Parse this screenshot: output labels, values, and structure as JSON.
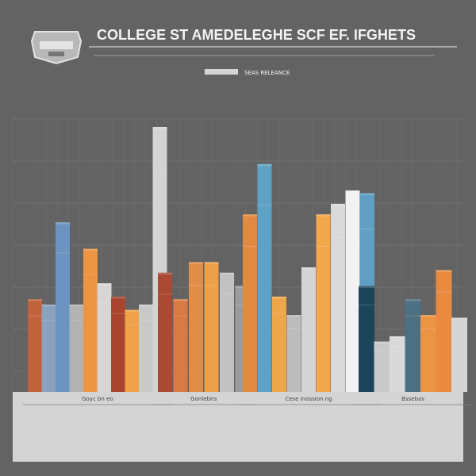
{
  "header": {
    "title": "COLLEGE ST AMEDELEGHE SCF EF. IFGHETS",
    "subtitle": "SEAS RELEANCE"
  },
  "colors": {
    "background": "#636363",
    "footer": "#d4d4d4",
    "logo": "#b9b9b9"
  },
  "chart_data": {
    "type": "bar",
    "ylim": [
      0,
      100
    ],
    "grid": true,
    "legend": "none",
    "groups": [
      {
        "label": "Goyc bn eo",
        "bars": [
          {
            "value": 35,
            "color": "#c0623b"
          },
          {
            "value": 33,
            "color": "#8aa2bd"
          },
          {
            "value": 64,
            "color": "#6d93c0"
          },
          {
            "value": 33,
            "color": "#b2b2b2"
          },
          {
            "value": 54,
            "color": "#eb9444"
          },
          {
            "value": 41,
            "color": "#d6d6d6"
          },
          {
            "value": 36,
            "color": "#a9452f"
          },
          {
            "value": 31,
            "color": "#eda248"
          },
          {
            "value": 33,
            "color": "#c9c9c9"
          },
          {
            "value": 100,
            "color": "#d4d4d4"
          }
        ]
      },
      {
        "label": "Gonlebirs",
        "bars": [
          {
            "value": 45,
            "color": "#aa4a32"
          },
          {
            "value": 35,
            "color": "#d87a41"
          },
          {
            "value": 49,
            "color": "#e28d47"
          },
          {
            "value": 49,
            "color": "#eda04a"
          },
          {
            "value": 45,
            "color": "#c2c2c2"
          },
          {
            "value": 40,
            "color": "#9c9c9c"
          }
        ]
      },
      {
        "label": "Cese lnossion ng",
        "bars": [
          {
            "value": 67,
            "color": "#e28a42"
          },
          {
            "value": 86,
            "color": "#5ea2c5"
          },
          {
            "value": 36,
            "color": "#eda64a"
          },
          {
            "value": 29,
            "color": "#bcbcbc"
          },
          {
            "value": 47,
            "color": "#d4d4d4"
          },
          {
            "value": 67,
            "color": "#f1a74b"
          },
          {
            "value": 71,
            "color": "#dadada"
          },
          {
            "value": 76,
            "color": "#f2f2f2"
          },
          {
            "value": 75,
            "color": "#5f9fc4"
          }
        ]
      },
      {
        "label": "Bssebas",
        "bars": [
          {
            "value": 40,
            "color": "#1c445a"
          },
          {
            "value": 19,
            "color": "#c9c9c9"
          },
          {
            "value": 21,
            "color": "#d9d9d9"
          },
          {
            "value": 35,
            "color": "#4d6f82"
          },
          {
            "value": 29,
            "color": "#eb9444"
          },
          {
            "value": 46,
            "color": "#e88a40"
          },
          {
            "value": 28,
            "color": "#d4d4d4"
          }
        ]
      }
    ]
  }
}
